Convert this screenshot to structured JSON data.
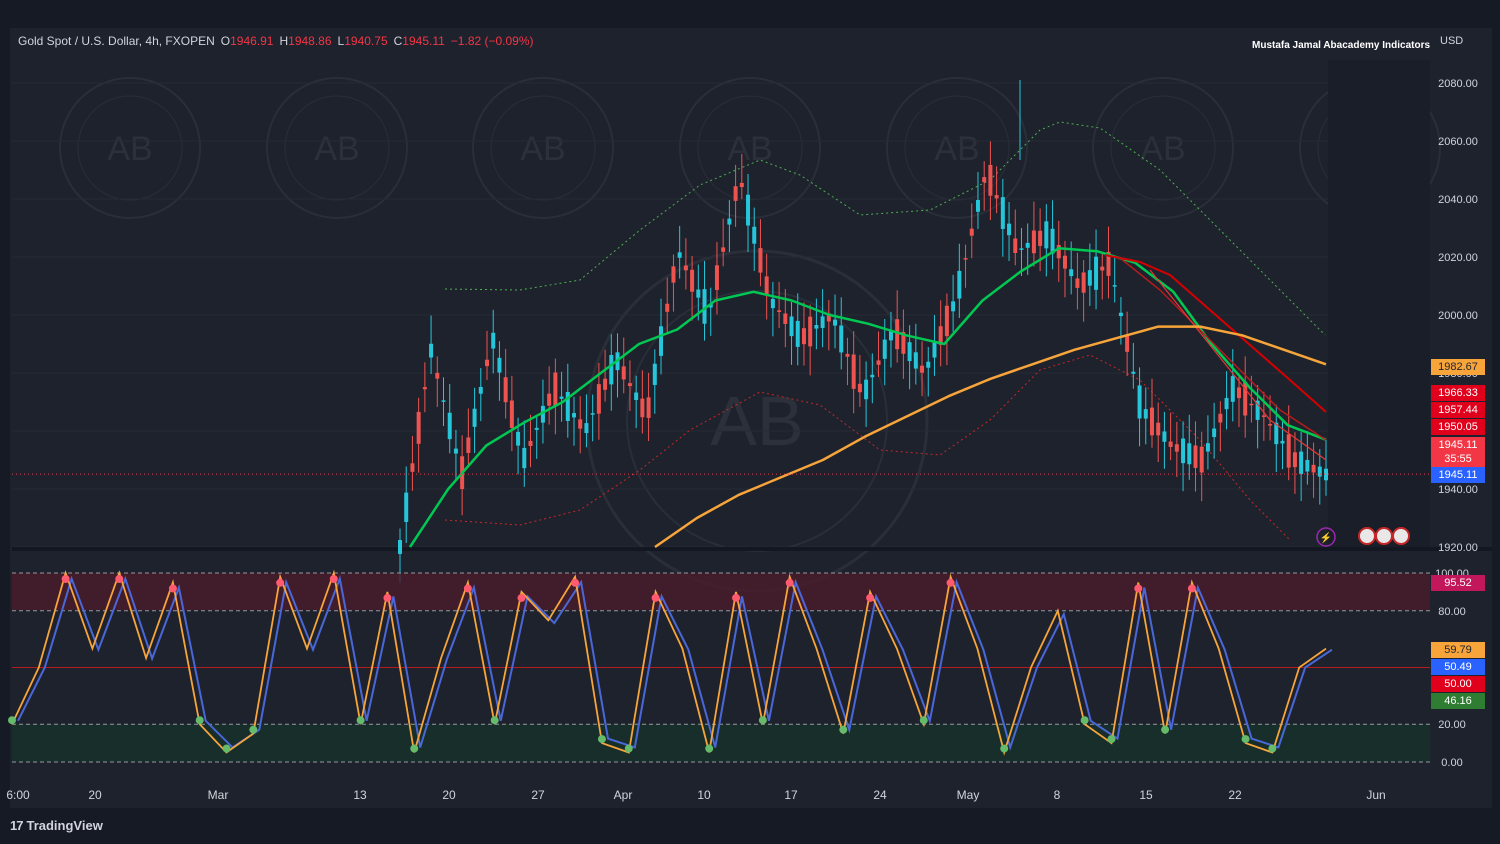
{
  "header": {
    "symbol": "Gold Spot / U.S. Dollar, 4h, FXOPEN",
    "o_label": "O",
    "o": "1946.91",
    "h_label": "H",
    "h": "1948.86",
    "l_label": "L",
    "l": "1940.75",
    "c_label": "C",
    "c": "1945.11",
    "change": "−1.82 (−0.09%)"
  },
  "indicator_tag": "Mustafa Jamal Abacademy Indicators",
  "currency": "USD",
  "footer": {
    "brand": "TradingView",
    "logo": "17"
  },
  "watermark": "AB",
  "colors": {
    "bg": "#1e222d",
    "up": "#26c6da",
    "down": "#ef5350",
    "ema_fast": "#00c853",
    "ema_slow": "#2ecc40",
    "ema200": "#f7a53b",
    "k_line": "#f7a53b",
    "d_line": "#4a67d8"
  },
  "price_tags": {
    "t1": "1982.67",
    "t2": "1966.33",
    "t3": "1957.44",
    "t4": "1950.05",
    "t5a": "1945.11",
    "t5b": "35:55",
    "t6": "1945.11"
  },
  "osc_tags": {
    "t1": "95.52",
    "t2": "59.79",
    "t3": "50.49",
    "t4": "50.00",
    "t5": "46.16"
  },
  "chart_data": [
    {
      "type": "line",
      "title": "Gold Spot / U.S. Dollar, 4h, FXOPEN",
      "xlabel": "",
      "ylabel": "USD",
      "x_ticks": [
        "6:00",
        "20",
        "Mar",
        "13",
        "20",
        "27",
        "Apr",
        "10",
        "17",
        "24",
        "May",
        "8",
        "15",
        "22",
        "Jun"
      ],
      "y_ticks": [
        1920,
        1940,
        1960,
        1980,
        2000,
        2020,
        2040,
        2060,
        2080
      ],
      "ylim": [
        1920,
        2085
      ],
      "series": [
        {
          "values": [
            1920,
            1988,
            1945,
            1992,
            1950,
            1975,
            1960,
            1985,
            1965,
            2022,
            2000,
            2048,
            2005,
            1992,
            2000,
            1972,
            1995,
            1980,
            2005,
            2050,
            2022,
            2028,
            2010,
            2018,
            1968,
            1955,
            1950,
            1975,
            1965,
            1950,
            1945
          ]
        },
        {
          "values": [
            1920,
            1940,
            1955,
            1963,
            1970,
            1980,
            1990,
            1995,
            2005,
            2008,
            2005,
            2000,
            1997,
            1993,
            1990,
            2005,
            2015,
            2023,
            2022,
            2018,
            2008,
            1990,
            1975,
            1962,
            1957
          ]
        },
        {
          "values": [
            1920,
            1930,
            1938,
            1944,
            1950,
            1958,
            1965,
            1972,
            1978,
            1983,
            1988,
            1992,
            1996,
            1996,
            1993,
            1988,
            1983
          ]
        }
      ]
    },
    {
      "type": "line",
      "title": "",
      "y_ticks": [
        0,
        20,
        80,
        100
      ],
      "ylim": [
        0,
        100
      ],
      "levels": [
        20,
        50,
        80
      ],
      "series": [
        {
          "values": [
            20,
            50,
            100,
            60,
            100,
            55,
            95,
            20,
            5,
            15,
            98,
            60,
            100,
            20,
            90,
            5,
            55,
            95,
            20,
            90,
            75,
            98,
            10,
            5,
            90,
            60,
            5,
            90,
            20,
            98,
            60,
            15,
            90,
            60,
            20,
            98,
            60,
            5,
            50,
            80,
            20,
            10,
            95,
            15,
            95,
            60,
            10,
            5,
            50,
            60
          ]
        }
      ]
    }
  ]
}
